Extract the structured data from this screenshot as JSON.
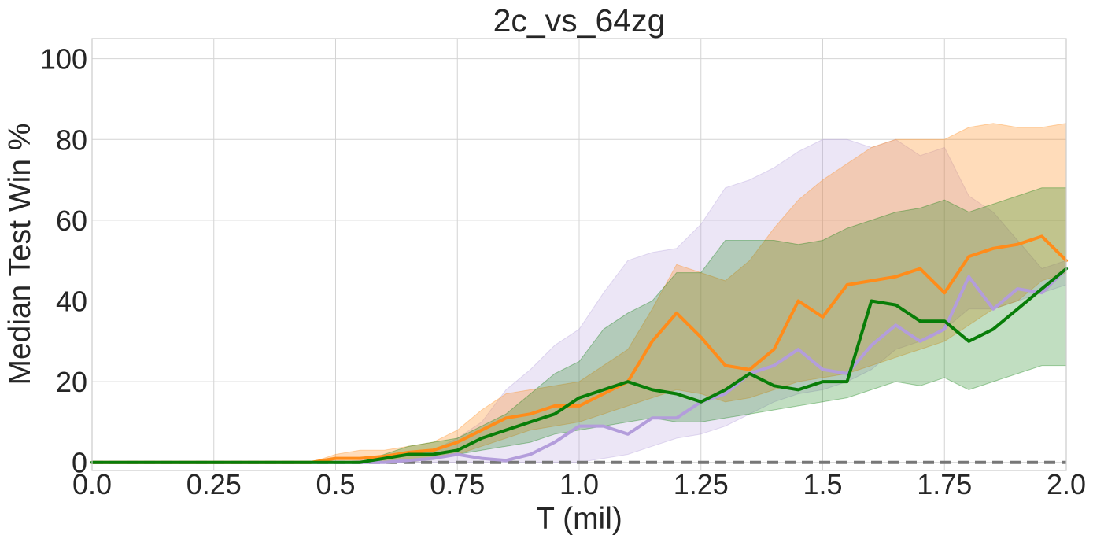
{
  "chart_data": {
    "type": "line",
    "title": "2c_vs_64zg",
    "xlabel": "T (mil)",
    "ylabel": "Median Test Win %",
    "xlim": [
      0.0,
      2.0
    ],
    "ylim": [
      -2,
      105
    ],
    "xticks": [
      0.0,
      0.25,
      0.5,
      0.75,
      1.0,
      1.25,
      1.5,
      1.75,
      2.0
    ],
    "xtick_labels": [
      "0.0",
      "0.25",
      "0.5",
      "0.75",
      "1.0",
      "1.25",
      "1.5",
      "1.75",
      "2.0"
    ],
    "yticks": [
      0,
      20,
      40,
      60,
      80,
      100
    ],
    "ytick_labels": [
      "0",
      "20",
      "40",
      "60",
      "80",
      "100"
    ],
    "grid": true,
    "baseline": {
      "y": 0,
      "color": "#777777",
      "style": "dashed"
    },
    "series": [
      {
        "color": "#b39ddb",
        "band_opacity": 0.25,
        "x": [
          0,
          0.5,
          0.6,
          0.7,
          0.75,
          0.8,
          0.85,
          0.9,
          0.95,
          1.0,
          1.05,
          1.1,
          1.15,
          1.2,
          1.25,
          1.3,
          1.35,
          1.4,
          1.45,
          1.5,
          1.55,
          1.6,
          1.65,
          1.7,
          1.75,
          1.8,
          1.85,
          1.9,
          1.95,
          2.0
        ],
        "y": [
          0,
          0,
          0,
          1,
          2,
          1,
          0.5,
          2,
          5,
          9,
          9,
          7,
          11,
          11,
          15,
          17,
          22,
          24,
          28,
          23,
          22,
          29,
          34,
          30,
          33,
          46,
          38,
          43,
          42,
          48
        ],
        "lower": [
          0,
          0,
          0,
          0,
          0,
          0,
          0,
          0,
          0,
          0,
          1,
          2,
          4,
          6,
          7,
          9,
          12,
          15,
          17,
          18,
          20,
          23,
          28,
          30,
          33,
          38,
          38,
          40,
          42,
          44
        ],
        "upper": [
          0,
          0,
          1,
          3,
          6,
          10,
          18,
          23,
          29,
          33,
          42,
          50,
          52,
          53,
          59,
          68,
          70,
          73,
          77,
          80,
          80,
          78,
          80,
          76,
          78,
          66,
          62,
          55,
          48,
          50
        ]
      },
      {
        "color": "#ff8c1a",
        "band_opacity": 0.3,
        "x": [
          0,
          0.45,
          0.5,
          0.55,
          0.6,
          0.65,
          0.7,
          0.75,
          0.8,
          0.85,
          0.9,
          0.95,
          1.0,
          1.05,
          1.1,
          1.15,
          1.2,
          1.25,
          1.3,
          1.35,
          1.4,
          1.45,
          1.5,
          1.55,
          1.6,
          1.65,
          1.7,
          1.75,
          1.8,
          1.85,
          1.9,
          1.95,
          2.0
        ],
        "y": [
          0,
          0,
          1,
          1,
          1.5,
          2.5,
          3,
          5,
          8,
          11,
          12,
          14,
          14,
          17,
          20,
          30,
          37,
          31,
          24,
          23,
          28,
          40,
          36,
          44,
          45,
          46,
          48,
          42,
          51,
          53,
          54,
          56,
          50
        ],
        "lower": [
          0,
          0,
          0,
          0,
          0,
          0,
          1,
          2,
          4,
          6,
          8,
          9,
          10,
          12,
          14,
          16,
          18,
          17,
          15,
          16,
          18,
          20,
          21,
          22,
          24,
          26,
          28,
          30,
          34,
          38,
          40,
          45,
          47
        ],
        "upper": [
          0,
          0,
          2,
          3,
          3,
          4,
          5,
          8,
          13,
          17,
          18,
          19,
          20,
          24,
          28,
          38,
          49,
          47,
          45,
          50,
          58,
          65,
          70,
          74,
          78,
          80,
          80,
          80,
          83,
          84,
          83,
          83,
          84
        ]
      },
      {
        "color": "#087d08",
        "band_opacity": 0.25,
        "x": [
          0,
          0.55,
          0.6,
          0.65,
          0.7,
          0.75,
          0.8,
          0.85,
          0.9,
          0.95,
          1.0,
          1.05,
          1.1,
          1.15,
          1.2,
          1.25,
          1.3,
          1.35,
          1.4,
          1.45,
          1.5,
          1.55,
          1.6,
          1.65,
          1.7,
          1.75,
          1.8,
          1.85,
          1.9,
          1.95,
          2.0
        ],
        "y": [
          0,
          0,
          1,
          2,
          2,
          3,
          6,
          8,
          10,
          12,
          16,
          18,
          20,
          18,
          17,
          15,
          18,
          22,
          19,
          18,
          20,
          20,
          40,
          39,
          35,
          35,
          30,
          33,
          38,
          43,
          48
        ],
        "lower": [
          0,
          0,
          0,
          0,
          1,
          2,
          3,
          4,
          5,
          7,
          8,
          9,
          10,
          11,
          10,
          10,
          11,
          12,
          13,
          14,
          15,
          16,
          18,
          20,
          19,
          21,
          18,
          20,
          22,
          24,
          24
        ],
        "upper": [
          0,
          0,
          2,
          4,
          5,
          6,
          9,
          12,
          17,
          22,
          25,
          33,
          37,
          40,
          47,
          47,
          55,
          55,
          55,
          54,
          55,
          58,
          60,
          62,
          63,
          65,
          62,
          64,
          66,
          68,
          68
        ]
      }
    ]
  }
}
